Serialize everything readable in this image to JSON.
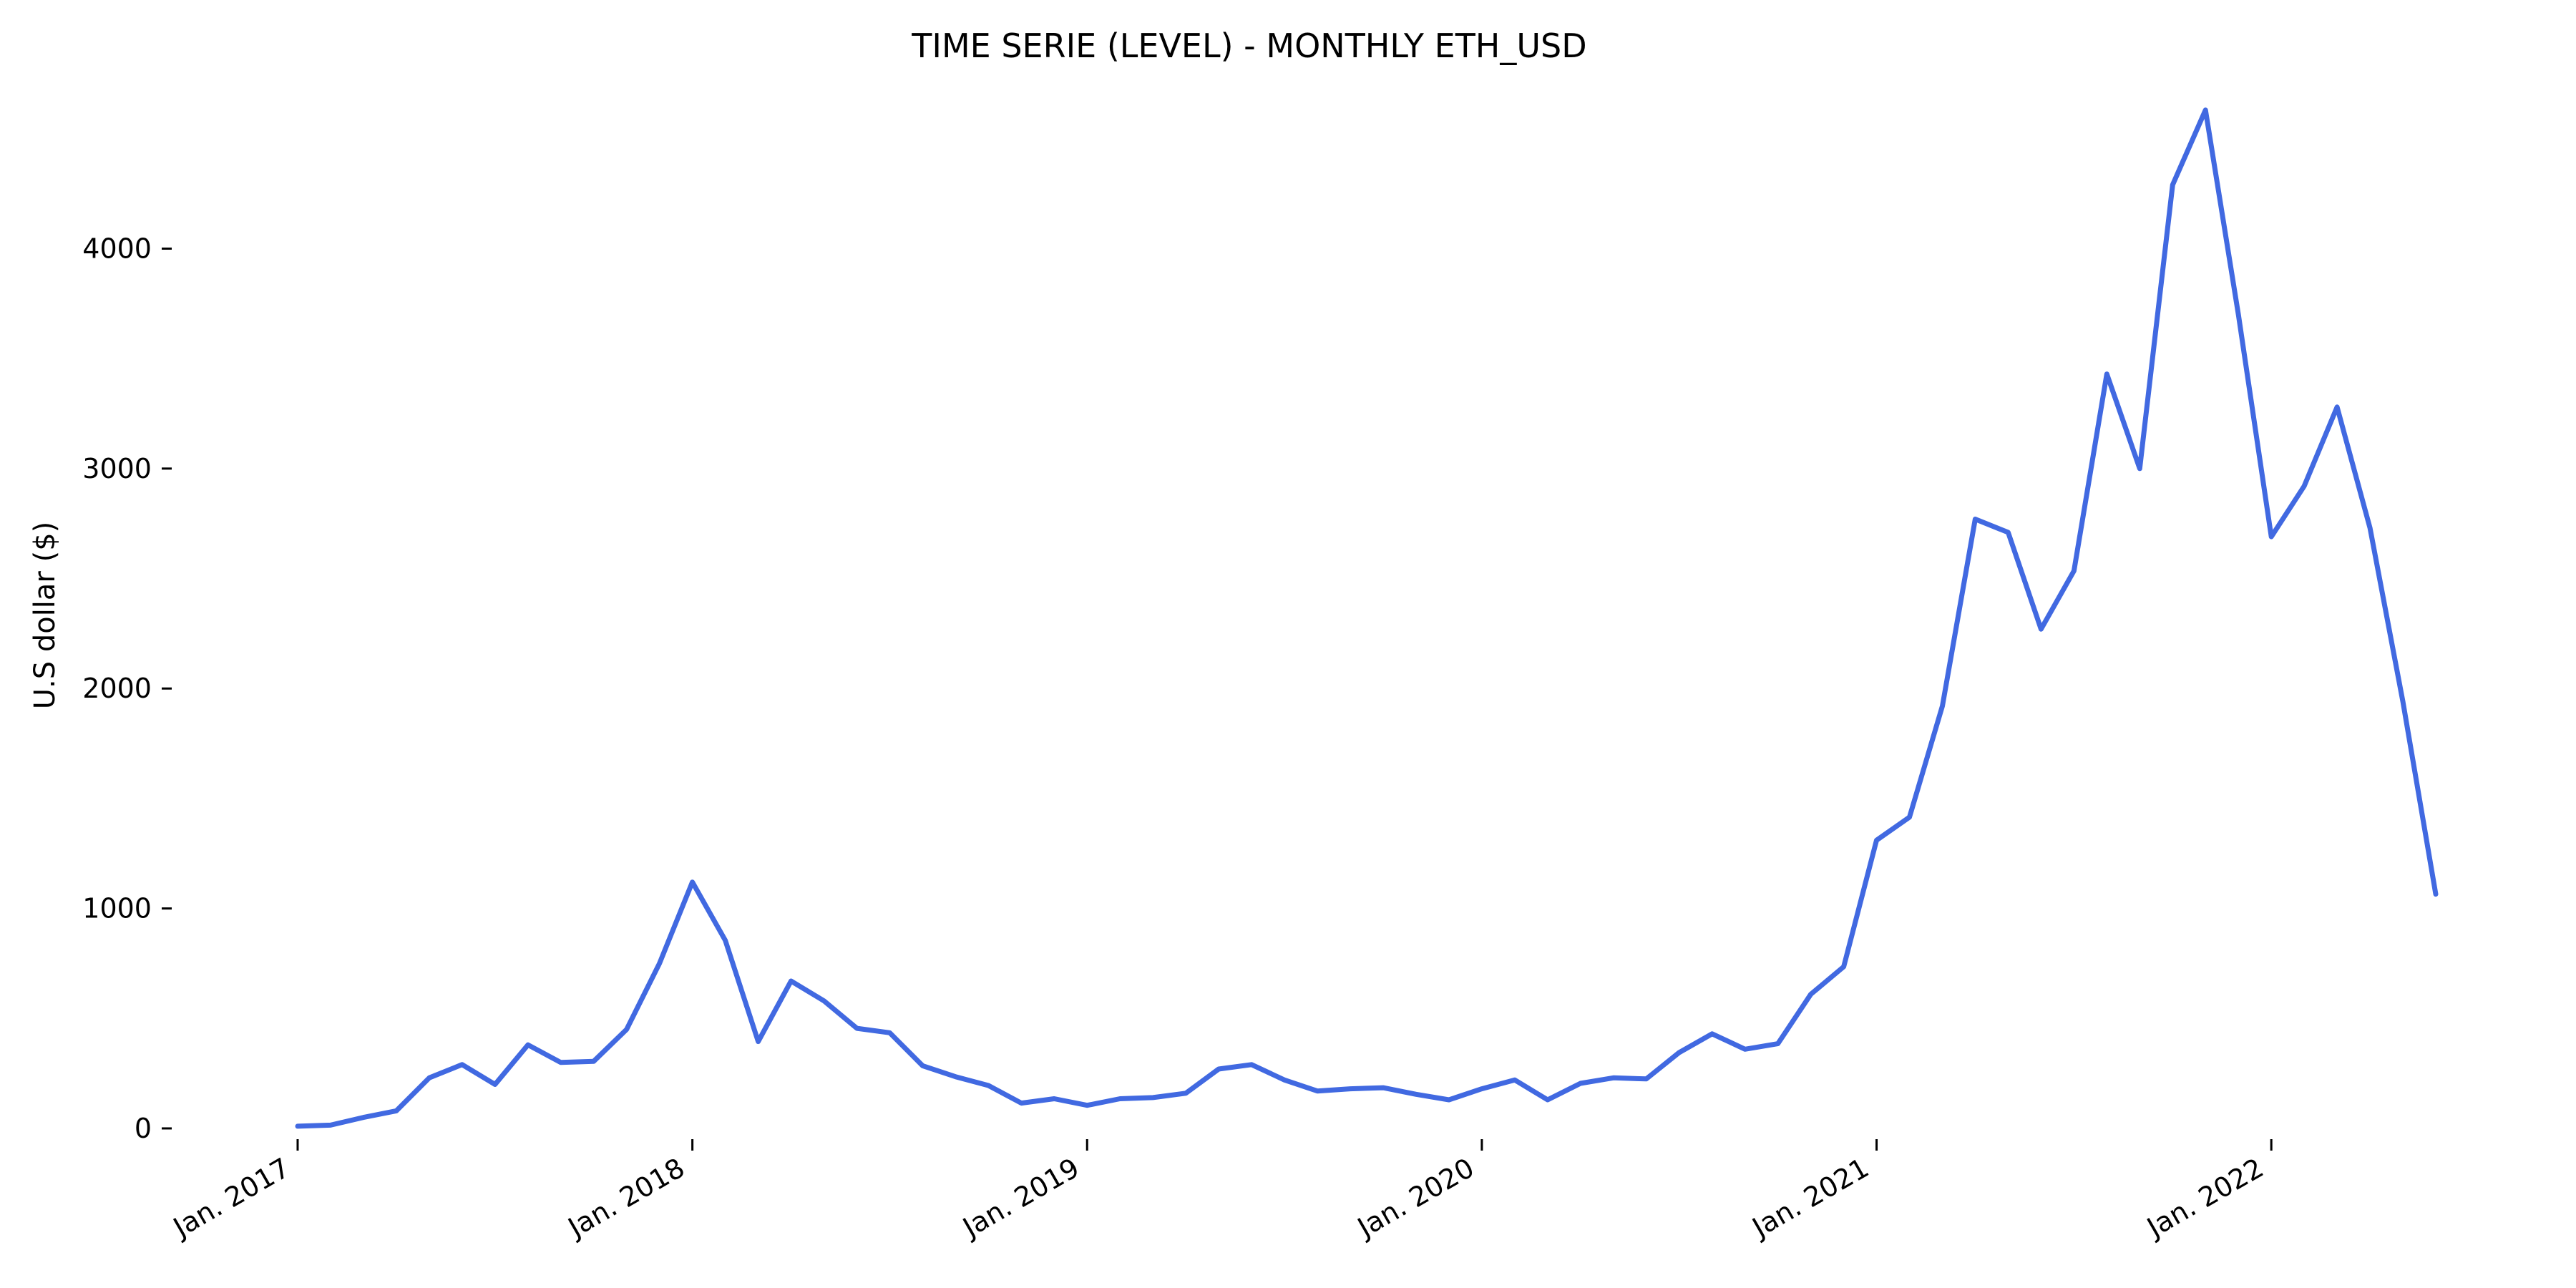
{
  "chart_data": {
    "type": "line",
    "title": "TIME SERIE (LEVEL) - MONTHLY ETH_USD",
    "xlabel": "",
    "ylabel": "U.S dollar ($)",
    "x_axis": "date",
    "x_ticks": [
      {
        "date": "2017-01",
        "label": "Jan. 2017"
      },
      {
        "date": "2018-01",
        "label": "Jan. 2018"
      },
      {
        "date": "2019-01",
        "label": "Jan. 2019"
      },
      {
        "date": "2020-01",
        "label": "Jan. 2020"
      },
      {
        "date": "2021-01",
        "label": "Jan. 2021"
      },
      {
        "date": "2022-01",
        "label": "Jan. 2022"
      }
    ],
    "y_ticks": [
      0,
      1000,
      2000,
      3000,
      4000
    ],
    "ylim": [
      -140,
      4740
    ],
    "xlim": [
      "2016-12",
      "2022-07"
    ],
    "grid": false,
    "legend": "none",
    "series_color": "#4169e1",
    "series": [
      {
        "x": [
          "2017-01",
          "2017-02",
          "2017-03",
          "2017-04",
          "2017-05",
          "2017-06",
          "2017-07",
          "2017-08",
          "2017-09",
          "2017-10",
          "2017-11",
          "2017-12",
          "2018-01",
          "2018-02",
          "2018-03",
          "2018-04",
          "2018-05",
          "2018-06",
          "2018-07",
          "2018-08",
          "2018-09",
          "2018-10",
          "2018-11",
          "2018-12",
          "2019-01",
          "2019-02",
          "2019-03",
          "2019-04",
          "2019-05",
          "2019-06",
          "2019-07",
          "2019-08",
          "2019-09",
          "2019-10",
          "2019-11",
          "2019-12",
          "2020-01",
          "2020-02",
          "2020-03",
          "2020-04",
          "2020-05",
          "2020-06",
          "2020-07",
          "2020-08",
          "2020-09",
          "2020-10",
          "2020-11",
          "2020-12",
          "2021-01",
          "2021-02",
          "2021-03",
          "2021-04",
          "2021-05",
          "2021-06",
          "2021-07",
          "2021-08",
          "2021-09",
          "2021-10",
          "2021-11",
          "2021-12",
          "2022-01",
          "2022-02",
          "2022-03",
          "2022-04",
          "2022-05",
          "2022-06"
        ],
        "values": [
          10,
          15,
          50,
          80,
          230,
          290,
          200,
          380,
          300,
          305,
          450,
          750,
          1120,
          855,
          395,
          670,
          580,
          455,
          435,
          285,
          235,
          195,
          115,
          135,
          105,
          135,
          140,
          160,
          270,
          290,
          220,
          170,
          180,
          185,
          155,
          130,
          180,
          220,
          130,
          205,
          230,
          225,
          345,
          430,
          360,
          385,
          610,
          735,
          1310,
          1415,
          1920,
          2770,
          2710,
          2270,
          2535,
          3430,
          3000,
          4290,
          4630,
          3700,
          2690,
          2920,
          3280,
          2730,
          1940,
          1065
        ]
      }
    ]
  }
}
